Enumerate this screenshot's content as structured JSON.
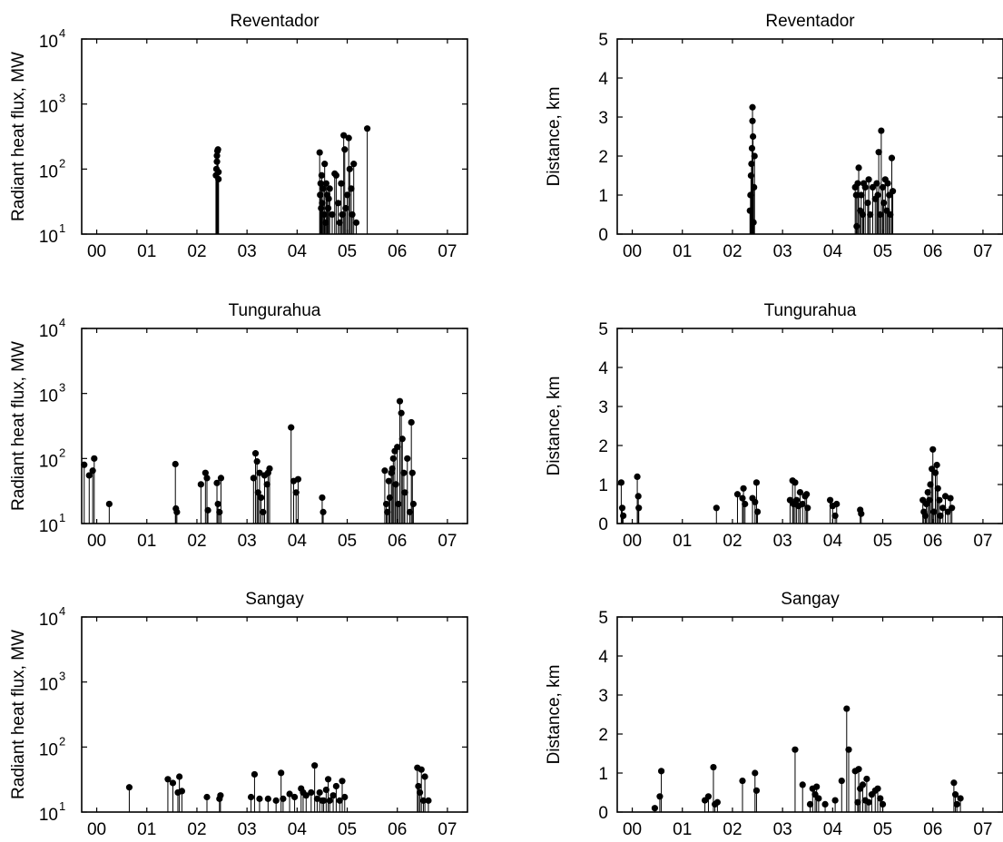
{
  "figure": {
    "type": "stem-panel-grid",
    "rows": 3,
    "cols": 2
  },
  "chart_data": [
    {
      "type": "scatter",
      "title": "Reventador",
      "ylabel": "Radiant heat flux, MW",
      "yscale": "log",
      "ylim": [
        10,
        10000
      ],
      "xlim": [
        -0.3,
        7.4
      ],
      "xticks": [
        0,
        1,
        2,
        3,
        4,
        5,
        6,
        7
      ],
      "xticklabels": [
        "00",
        "01",
        "02",
        "03",
        "04",
        "05",
        "06",
        "07"
      ],
      "yticks": [
        10,
        100,
        1000,
        10000
      ],
      "yticklabels": [
        "10^1",
        "10^2",
        "10^3",
        "10^4"
      ],
      "x": [
        2.38,
        2.39,
        2.4,
        2.4,
        2.41,
        2.42,
        2.43,
        2.43,
        4.45,
        4.46,
        4.47,
        4.48,
        4.49,
        4.5,
        4.52,
        4.54,
        4.55,
        4.57,
        4.58,
        4.6,
        4.62,
        4.63,
        4.65,
        4.7,
        4.75,
        4.78,
        4.82,
        4.85,
        4.88,
        4.9,
        4.93,
        4.95,
        4.97,
        5.0,
        5.03,
        5.05,
        5.08,
        5.1,
        5.13,
        5.18,
        5.4
      ],
      "y": [
        80,
        100,
        130,
        160,
        190,
        200,
        70,
        90,
        180,
        40,
        60,
        25,
        80,
        30,
        50,
        20,
        120,
        15,
        60,
        40,
        25,
        35,
        50,
        20,
        85,
        80,
        30,
        15,
        60,
        20,
        330,
        200,
        25,
        40,
        300,
        100,
        50,
        20,
        120,
        15,
        420
      ]
    },
    {
      "type": "scatter",
      "title": "Reventador",
      "ylabel": "Distance, km",
      "ylim": [
        0,
        5
      ],
      "xlim": [
        -0.3,
        7.4
      ],
      "xticks": [
        0,
        1,
        2,
        3,
        4,
        5,
        6,
        7
      ],
      "xticklabels": [
        "00",
        "01",
        "02",
        "03",
        "04",
        "05",
        "06",
        "07"
      ],
      "yticks": [
        0,
        1,
        2,
        3,
        4,
        5
      ],
      "yticklabels": [
        "0",
        "1",
        "2",
        "3",
        "4",
        "5"
      ],
      "x": [
        2.35,
        2.36,
        2.37,
        2.38,
        2.39,
        2.4,
        2.4,
        2.41,
        2.42,
        2.43,
        2.44,
        4.45,
        4.47,
        4.48,
        4.5,
        4.52,
        4.55,
        4.57,
        4.6,
        4.62,
        4.65,
        4.7,
        4.72,
        4.75,
        4.8,
        4.85,
        4.88,
        4.9,
        4.92,
        4.95,
        4.97,
        5.0,
        5.02,
        5.05,
        5.08,
        5.1,
        5.13,
        5.15,
        5.18,
        5.2
      ],
      "y": [
        0.6,
        1.0,
        1.5,
        1.8,
        2.2,
        2.9,
        3.25,
        2.5,
        0.3,
        1.2,
        2.0,
        1.2,
        1.0,
        0.2,
        1.3,
        1.7,
        0.6,
        1.0,
        0.5,
        1.3,
        1.2,
        0.8,
        1.4,
        0.5,
        1.2,
        0.9,
        1.3,
        1.0,
        2.1,
        0.5,
        2.65,
        1.2,
        0.8,
        1.4,
        0.6,
        1.3,
        1.0,
        0.5,
        1.95,
        1.1
      ]
    },
    {
      "type": "scatter",
      "title": "Tungurahua",
      "ylabel": "Radiant heat flux, MW",
      "yscale": "log",
      "ylim": [
        10,
        10000
      ],
      "xlim": [
        -0.3,
        7.4
      ],
      "xticks": [
        0,
        1,
        2,
        3,
        4,
        5,
        6,
        7
      ],
      "xticklabels": [
        "00",
        "01",
        "02",
        "03",
        "04",
        "05",
        "06",
        "07"
      ],
      "yticks": [
        10,
        100,
        1000,
        10000
      ],
      "yticklabels": [
        "10^1",
        "10^2",
        "10^3",
        "10^4"
      ],
      "x": [
        -0.25,
        -0.15,
        -0.08,
        -0.05,
        0.25,
        1.57,
        1.58,
        1.6,
        2.08,
        2.17,
        2.2,
        2.22,
        2.4,
        2.42,
        2.45,
        2.48,
        3.13,
        3.17,
        3.2,
        3.22,
        3.25,
        3.28,
        3.32,
        3.35,
        3.4,
        3.42,
        3.45,
        3.88,
        3.93,
        3.98,
        4.02,
        4.5,
        4.52,
        5.75,
        5.78,
        5.8,
        5.83,
        5.85,
        5.88,
        5.9,
        5.92,
        5.95,
        5.97,
        6.0,
        6.02,
        6.05,
        6.08,
        6.1,
        6.13,
        6.15,
        6.2,
        6.25,
        6.28,
        6.3,
        6.32
      ],
      "y": [
        80,
        55,
        65,
        100,
        20,
        82,
        17,
        15,
        40,
        60,
        50,
        16,
        42,
        20,
        15,
        50,
        50,
        120,
        90,
        30,
        60,
        25,
        15,
        55,
        40,
        60,
        70,
        300,
        45,
        30,
        48,
        25,
        15,
        65,
        20,
        15,
        45,
        25,
        60,
        70,
        100,
        130,
        40,
        150,
        20,
        760,
        500,
        200,
        60,
        30,
        100,
        15,
        360,
        60,
        20
      ]
    },
    {
      "type": "scatter",
      "title": "Tungurahua",
      "ylabel": "Distance, km",
      "ylim": [
        0,
        5
      ],
      "xlim": [
        -0.3,
        7.4
      ],
      "xticks": [
        0,
        1,
        2,
        3,
        4,
        5,
        6,
        7
      ],
      "xticklabels": [
        "00",
        "01",
        "02",
        "03",
        "04",
        "05",
        "06",
        "07"
      ],
      "yticks": [
        0,
        1,
        2,
        3,
        4,
        5
      ],
      "yticklabels": [
        "0",
        "1",
        "2",
        "3",
        "4",
        "5"
      ],
      "x": [
        -0.22,
        -0.2,
        -0.18,
        0.1,
        0.12,
        0.13,
        1.68,
        2.1,
        2.2,
        2.22,
        2.25,
        2.4,
        2.45,
        2.48,
        2.5,
        3.15,
        3.2,
        3.22,
        3.25,
        3.28,
        3.32,
        3.35,
        3.4,
        3.45,
        3.48,
        3.5,
        3.95,
        4.0,
        4.05,
        4.08,
        4.55,
        4.57,
        5.8,
        5.82,
        5.85,
        5.87,
        5.9,
        5.93,
        5.95,
        5.98,
        6.0,
        6.02,
        6.05,
        6.08,
        6.1,
        6.13,
        6.15,
        6.2,
        6.25,
        6.3,
        6.35,
        6.38
      ],
      "y": [
        1.05,
        0.4,
        0.2,
        1.2,
        0.7,
        0.4,
        0.4,
        0.75,
        0.65,
        0.9,
        0.5,
        0.65,
        0.55,
        1.05,
        0.3,
        0.6,
        1.1,
        0.5,
        1.05,
        0.6,
        0.45,
        0.8,
        0.5,
        0.7,
        0.75,
        0.4,
        0.6,
        0.45,
        0.2,
        0.5,
        0.35,
        0.25,
        0.6,
        0.3,
        0.2,
        0.5,
        0.8,
        0.6,
        1.0,
        1.4,
        1.9,
        0.3,
        1.3,
        1.5,
        0.9,
        0.6,
        0.2,
        0.4,
        0.7,
        0.3,
        0.65,
        0.4
      ]
    },
    {
      "type": "scatter",
      "title": "Sangay",
      "ylabel": "Radiant heat flux, MW",
      "yscale": "log",
      "ylim": [
        10,
        10000
      ],
      "xlim": [
        -0.3,
        7.4
      ],
      "xticks": [
        0,
        1,
        2,
        3,
        4,
        5,
        6,
        7
      ],
      "xticklabels": [
        "00",
        "01",
        "02",
        "03",
        "04",
        "05",
        "06",
        "07"
      ],
      "yticks": [
        10,
        100,
        1000,
        10000
      ],
      "yticklabels": [
        "10^1",
        "10^2",
        "10^3",
        "10^4"
      ],
      "x": [
        0.65,
        1.42,
        1.52,
        1.62,
        1.65,
        1.7,
        2.2,
        2.45,
        2.47,
        3.08,
        3.15,
        3.25,
        3.42,
        3.58,
        3.68,
        3.72,
        3.85,
        3.95,
        4.08,
        4.12,
        4.18,
        4.28,
        4.35,
        4.4,
        4.45,
        4.5,
        4.53,
        4.58,
        4.62,
        4.65,
        4.72,
        4.78,
        4.85,
        4.9,
        4.95,
        6.4,
        6.42,
        6.45,
        6.48,
        6.52,
        6.55,
        6.62
      ],
      "y": [
        24,
        32,
        28,
        20,
        35,
        21,
        17,
        16,
        18,
        17,
        38,
        16,
        16,
        15,
        40,
        16,
        19,
        17,
        23,
        20,
        18,
        20,
        52,
        16,
        20,
        15,
        15,
        22,
        32,
        15,
        18,
        25,
        15,
        30,
        17,
        48,
        25,
        20,
        45,
        15,
        35,
        15
      ]
    },
    {
      "type": "scatter",
      "title": "Sangay",
      "ylabel": "Distance, km",
      "ylim": [
        0,
        5
      ],
      "xlim": [
        -0.3,
        7.4
      ],
      "xticks": [
        0,
        1,
        2,
        3,
        4,
        5,
        6,
        7
      ],
      "xticklabels": [
        "00",
        "01",
        "02",
        "03",
        "04",
        "05",
        "06",
        "07"
      ],
      "yticks": [
        0,
        1,
        2,
        3,
        4,
        5
      ],
      "yticklabels": [
        "0",
        "1",
        "2",
        "3",
        "4",
        "5"
      ],
      "x": [
        0.45,
        0.55,
        0.58,
        1.45,
        1.52,
        1.62,
        1.65,
        1.7,
        2.2,
        2.45,
        2.48,
        3.25,
        3.4,
        3.55,
        3.6,
        3.65,
        3.68,
        3.72,
        3.85,
        4.05,
        4.18,
        4.28,
        4.32,
        4.45,
        4.5,
        4.52,
        4.55,
        4.6,
        4.65,
        4.68,
        4.72,
        4.78,
        4.85,
        4.9,
        4.95,
        5.0,
        6.42,
        6.45,
        6.48,
        6.55
      ],
      "y": [
        0.1,
        0.4,
        1.05,
        0.3,
        0.4,
        1.15,
        0.2,
        0.25,
        0.8,
        1.0,
        0.55,
        1.6,
        0.7,
        0.2,
        0.6,
        0.45,
        0.65,
        0.35,
        0.2,
        0.3,
        0.8,
        2.65,
        1.6,
        1.05,
        0.25,
        1.1,
        0.6,
        0.7,
        0.3,
        0.85,
        0.25,
        0.45,
        0.55,
        0.6,
        0.35,
        0.2,
        0.75,
        0.45,
        0.2,
        0.35
      ]
    }
  ]
}
